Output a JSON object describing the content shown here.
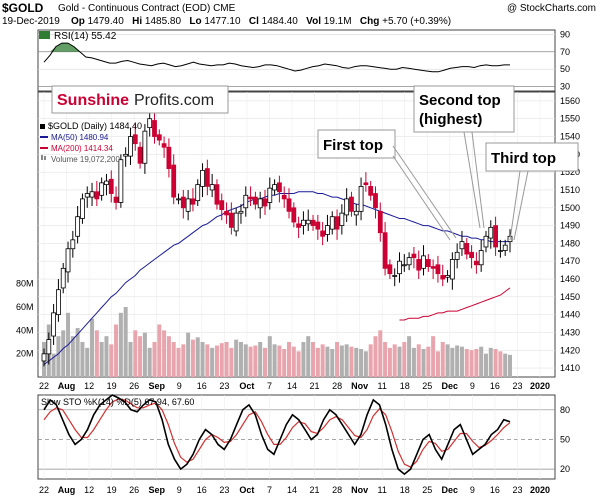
{
  "header": {
    "ticker": "$GOLD",
    "description": "Gold - Continuous Contract (EOD)",
    "exchange": "CME",
    "copyright": "@ StockCharts.com",
    "date": "19-Dec-2019",
    "op_label": "Op",
    "op": "1479.40",
    "hi_label": "Hi",
    "hi": "1485.80",
    "lo_label": "Lo",
    "lo": "1477.10",
    "cl_label": "Cl",
    "cl": "1484.40",
    "vol_label": "Vol",
    "vol": "19.1M",
    "chg_label": "Chg",
    "chg": "+5.70 (+0.39%)"
  },
  "branding": {
    "sunshine": "Sunshine",
    "profits": "Profits.com"
  },
  "annotations": {
    "first_top": "First top",
    "second_top_line1": "Second top",
    "second_top_line2": "(highest)",
    "third_top": "Third top"
  },
  "legend": {
    "price": "$GOLD (Daily) 1484.40",
    "ma50": "MA(50) 1480.94",
    "ma200": "MA(200) 1414.34",
    "volume": "Volume 19,072,200"
  },
  "colors": {
    "up": "#000000",
    "down": "#cc0033",
    "ma50": "#1a1a99",
    "ma200": "#cc0033",
    "rsi": "#000000",
    "rsi_fill": "#2e7d32",
    "sto_k": "#000000",
    "sto_d": "#d32f2f",
    "vol_up": "#b0b0b0",
    "vol_down": "#e8a5ad"
  },
  "chart_data": [
    {
      "type": "line",
      "name": "RSI(14)",
      "label": "RSI(14) 55.42",
      "ylim": [
        25,
        95
      ],
      "yticks": [
        "90",
        "70",
        "50",
        "30"
      ],
      "values": [
        58,
        66,
        76,
        80,
        80,
        76,
        70,
        64,
        63,
        61,
        59,
        57,
        57,
        59,
        60,
        58,
        56,
        55,
        54,
        56,
        57,
        55,
        53,
        54,
        56,
        58,
        56,
        55,
        54,
        55,
        55,
        57,
        56,
        54,
        53,
        52,
        53,
        55,
        55,
        54,
        52,
        50,
        48,
        49,
        51,
        53,
        54,
        56,
        55,
        54,
        52,
        51,
        53,
        54,
        54,
        53,
        52,
        51,
        50,
        50,
        52,
        51,
        50,
        49,
        48,
        47,
        47,
        49,
        51,
        52,
        53,
        53,
        52,
        54,
        55,
        54,
        54,
        55,
        55
      ]
    },
    {
      "type": "candlestick",
      "name": "$GOLD (Daily)",
      "ylim": [
        1405,
        1565
      ],
      "yticks": [
        "1560",
        "1550",
        "1540",
        "1530",
        "1520",
        "1510",
        "1500",
        "1490",
        "1480",
        "1470",
        "1460",
        "1450",
        "1440",
        "1430",
        "1420",
        "1410"
      ],
      "volume_ticks": [
        "80M",
        "60M",
        "40M",
        "20M"
      ],
      "xticks": [
        "22",
        "Aug",
        "12",
        "19",
        "26",
        "Sep",
        "9",
        "16",
        "23",
        "Oct",
        "7",
        "14",
        "21",
        "28",
        "Nov",
        "11",
        "18",
        "25",
        "Dec",
        "9",
        "16",
        "23",
        "2020"
      ],
      "closes": [
        1418,
        1426,
        1441,
        1454,
        1466,
        1477,
        1482,
        1495,
        1505,
        1508,
        1509,
        1505,
        1514,
        1515,
        1508,
        1503,
        1527,
        1530,
        1540,
        1536,
        1525,
        1543,
        1550,
        1540,
        1538,
        1534,
        1522,
        1506,
        1505,
        1500,
        1505,
        1502,
        1513,
        1521,
        1512,
        1513,
        1502,
        1499,
        1496,
        1489,
        1497,
        1498,
        1507,
        1505,
        1502,
        1505,
        1501,
        1511,
        1513,
        1509,
        1505,
        1498,
        1492,
        1489,
        1493,
        1493,
        1490,
        1488,
        1484,
        1490,
        1495,
        1488,
        1497,
        1505,
        1498,
        1498,
        1512,
        1513,
        1507,
        1500,
        1486,
        1466,
        1463,
        1462,
        1470,
        1468,
        1472,
        1472,
        1465,
        1473,
        1467,
        1466,
        1463,
        1460,
        1462,
        1471,
        1475,
        1481,
        1474,
        1472,
        1468,
        1476,
        1484,
        1489,
        1478,
        1476,
        1479,
        1484
      ],
      "ma50": [
        1412,
        1414,
        1416,
        1418,
        1421,
        1423,
        1426,
        1429,
        1432,
        1435,
        1438,
        1441,
        1444,
        1447,
        1450,
        1452,
        1455,
        1458,
        1460,
        1462,
        1465,
        1467,
        1469,
        1471,
        1473,
        1475,
        1477,
        1479,
        1480,
        1482,
        1484,
        1486,
        1488,
        1490,
        1491,
        1493,
        1495,
        1496,
        1498,
        1499,
        1500,
        1501,
        1503,
        1504,
        1505,
        1505,
        1506,
        1507,
        1507,
        1508,
        1508,
        1508,
        1508,
        1509,
        1509,
        1509,
        1509,
        1508,
        1508,
        1507,
        1506,
        1506,
        1505,
        1504,
        1503,
        1502,
        1502,
        1501,
        1500,
        1499,
        1498,
        1497,
        1496,
        1495,
        1494,
        1494,
        1493,
        1492,
        1491,
        1490,
        1490,
        1489,
        1488,
        1487,
        1487,
        1486,
        1485,
        1484,
        1484,
        1483,
        1483,
        1482,
        1482,
        1481,
        1481,
        1481,
        1481,
        1481
      ],
      "ma200": [
        1437,
        1437,
        1438,
        1438,
        1438,
        1439,
        1439,
        1440,
        1441,
        1441,
        1442,
        1442,
        1442,
        1443,
        1444,
        1445,
        1446,
        1447,
        1448,
        1449,
        1450,
        1451,
        1453,
        1455
      ],
      "volume_m": [
        30,
        45,
        20,
        35,
        40,
        55,
        35,
        42,
        30,
        25,
        50,
        40,
        30,
        35,
        28,
        45,
        55,
        60,
        30,
        40,
        35,
        38,
        25,
        30,
        45,
        40,
        35,
        30,
        25,
        28,
        38,
        32,
        34,
        30,
        28,
        25,
        27,
        29,
        30,
        25,
        32,
        30,
        28,
        26,
        27,
        30,
        25,
        35,
        28,
        27,
        24,
        30,
        26,
        22,
        30,
        35,
        30,
        25,
        28,
        26,
        24,
        30,
        27,
        28,
        26,
        25,
        24,
        22,
        28,
        35,
        40,
        30,
        25,
        28,
        26,
        30,
        35,
        25,
        28,
        24,
        26,
        35,
        22,
        30,
        28,
        25,
        27,
        26,
        24,
        23,
        24,
        26,
        20,
        25,
        24,
        22,
        20,
        19
      ]
    },
    {
      "type": "line",
      "name": "Slow STO",
      "label": "Slow STO %K(14) %D(5) 67.94, 67.60",
      "ylim": [
        10,
        95
      ],
      "yticks": [
        "80",
        "50",
        "20"
      ],
      "series": [
        {
          "name": "%K(14)",
          "values": [
            80,
            90,
            85,
            70,
            55,
            45,
            50,
            60,
            75,
            85,
            90,
            95,
            92,
            88,
            80,
            78,
            85,
            90,
            88,
            70,
            45,
            30,
            20,
            25,
            35,
            50,
            60,
            55,
            45,
            40,
            50,
            65,
            80,
            85,
            75,
            55,
            40,
            35,
            50,
            65,
            75,
            70,
            60,
            50,
            55,
            70,
            80,
            75,
            65,
            55,
            45,
            55,
            75,
            90,
            85,
            65,
            40,
            20,
            15,
            20,
            35,
            50,
            55,
            40,
            30,
            45,
            60,
            65,
            50,
            35,
            40,
            45,
            55,
            60,
            70,
            68
          ]
        },
        {
          "name": "%D(5)",
          "values": [
            70,
            78,
            82,
            80,
            70,
            60,
            52,
            52,
            60,
            70,
            80,
            88,
            91,
            90,
            86,
            82,
            82,
            85,
            87,
            80,
            65,
            46,
            32,
            27,
            30,
            40,
            50,
            55,
            52,
            47,
            48,
            55,
            65,
            75,
            78,
            68,
            55,
            45,
            45,
            52,
            62,
            68,
            66,
            58,
            56,
            62,
            70,
            73,
            70,
            62,
            54,
            52,
            60,
            74,
            81,
            75,
            58,
            38,
            25,
            22,
            28,
            40,
            48,
            46,
            38,
            40,
            48,
            56,
            56,
            48,
            42,
            44,
            49,
            55,
            62,
            67
          ]
        }
      ]
    }
  ]
}
